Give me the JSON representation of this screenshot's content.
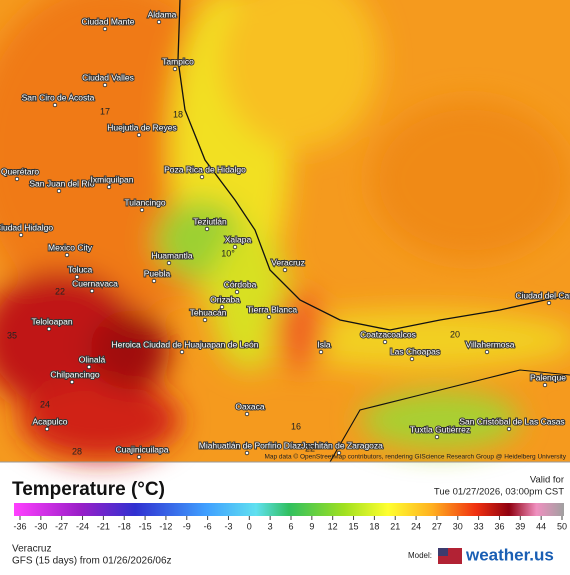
{
  "map": {
    "labels": [
      "Ciudad Mante",
      "Aldama",
      "Tampico",
      "Ciudad Valles",
      "San Ciro de Acosta",
      "Huejutla de Reyes",
      "Poza Rica de Hidalgo",
      "Querétaro",
      "San Juan del Río",
      "Ixmiquilpan",
      "Tulancingo",
      "Teziutlán",
      "Ciudad Hidalgo",
      "Mexico City",
      "Xalapa",
      "Veracruz",
      "Huamantla",
      "Toluca",
      "Cuernavaca",
      "Puebla",
      "Córdoba",
      "Orizaba",
      "Tehuacán",
      "Tierra Blanca",
      "Teloloapan",
      "Heroica Ciudad de Huajuapan de León",
      "Olinalá",
      "Chilpancingo",
      "Acapulco",
      "Cuajinicuilapa",
      "Oaxaca",
      "Miahuatlán de Porfirio Díaz",
      "Juchitán de Zaragoza",
      "Coatzacoalcos",
      "Las Choapas",
      "Villahermosa",
      "Palenque",
      "Ciudad del Carmen",
      "San Cristóbal de Las Casas",
      "Tuxtla Gutiérrez",
      "Isla"
    ],
    "values": [
      "10°",
      "35",
      "16",
      "18",
      "22",
      "22",
      "20",
      "17",
      "24",
      "28"
    ],
    "attribution": "Map data © OpenStreetMap contributors, rendering GIScience Research Group @ Heidelberg University"
  },
  "legend": {
    "title": "Temperature (°C)",
    "ticks": [
      -36,
      -30,
      -27,
      -24,
      -21,
      -18,
      -15,
      -12,
      -9,
      -6,
      -3,
      0,
      3,
      6,
      9,
      12,
      15,
      18,
      21,
      24,
      27,
      30,
      33,
      36,
      39,
      44,
      50
    ],
    "valid_label": "Valid for",
    "valid_time": "Tue 01/27/2026, 03:00pm CST"
  },
  "footer": {
    "location": "Veracruz",
    "model_run": "GFS (15 days) from  01/26/2026/06z",
    "model_label": "Model:",
    "brand": "weather.us"
  }
}
